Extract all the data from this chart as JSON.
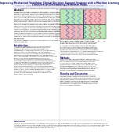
{
  "title": "Improving Mechanical Ventilator Clinical Decision Support Systems with a Machine Learning Classifier for Determining Ventilator Mode.",
  "authors": "Guangyu Hu, Hadrian S. Inalsingh, Jianna Seyoum, Gianluigi M. Adsecente, Clara Sorci Duarte, Susan E. Imalsingh",
  "affiliation": "* Department of Cardiothoracic Surgery, Stanford, CA 94040, USA ** Department of Cardiothoracic Surgery, Stanford, CA 94040, USA",
  "bg_color": "#ffffff",
  "text_color": "#111111",
  "title_color": "#1a1a6e",
  "section_color": "#1a1a6e",
  "header_bar_color": "#2244aa",
  "fig_light_green": "#b8e8b8",
  "fig_light_red": "#f0b8b8",
  "fig_green_border": "#22aa22",
  "fig_red_border": "#cc2222",
  "fig_blue_line": "#4466cc",
  "fig_pink_line": "#dd4477",
  "fig_dark_line": "#334466",
  "column_line_color": "#aaaaaa"
}
